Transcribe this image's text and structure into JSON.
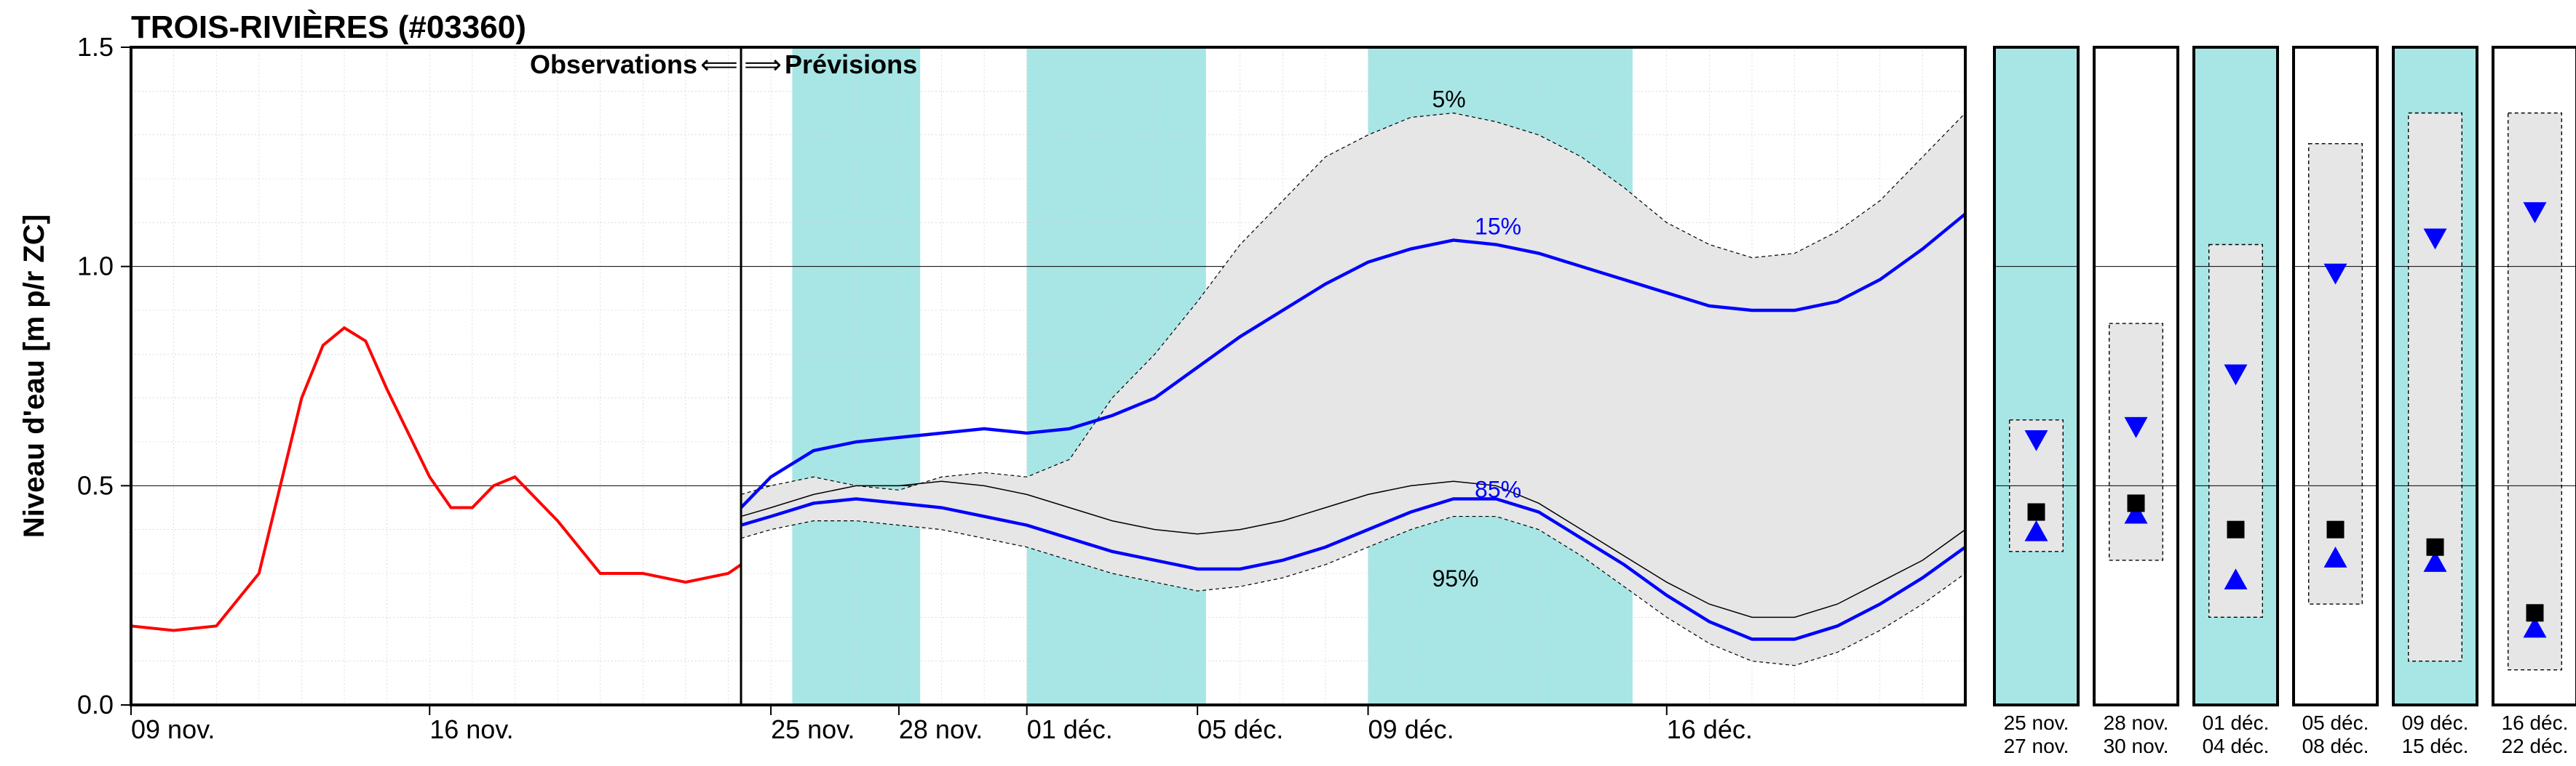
{
  "title": "TROIS-RIVIÈRES (#03360)",
  "y_axis_label": "Niveau d'eau [m p/r ZC]",
  "legend": {
    "observations": "Observations",
    "prévisions": "Prévisions"
  },
  "percentile_labels": {
    "p5": "5%",
    "p15": "15%",
    "p85": "85%",
    "p95": "95%"
  },
  "colors": {
    "background": "#ffffff",
    "grid": "#c8c8c8",
    "axis": "#000000",
    "obs_line": "#ff0000",
    "percentile_line": "#0000ff",
    "median_line": "#000000",
    "band_fill": "#e6e6e6",
    "band_edge": "#000000",
    "highlight_band": "#a8e6e6",
    "marker_square": "#000000",
    "marker_up": "#0000ff",
    "marker_down": "#0000ff"
  },
  "font_sizes": {
    "title": 22,
    "axis_label": 20,
    "tick": 18,
    "legend": 18,
    "pct": 16,
    "panel_xtick": 14
  },
  "line_widths": {
    "obs": 2.0,
    "percentile": 2.2,
    "median": 1.0,
    "band_edge_dash": "5,4",
    "panel_band_edge_dash": "5,4",
    "grid": 0.6,
    "grid_dash": "2,3",
    "axis": 2.0
  },
  "main_chart": {
    "type": "line",
    "ylim": [
      0.0,
      1.5
    ],
    "ytick_step": 0.5,
    "x_extent_days": [
      0,
      43
    ],
    "xticks_days": [
      0,
      7,
      15,
      18,
      21,
      25,
      29,
      36
    ],
    "xtick_labels": [
      "09 nov.",
      "16 nov.",
      "25 nov.",
      "28 nov.",
      "01 déc.",
      "05 déc.",
      "09 déc.",
      "16 déc."
    ],
    "obs_forecast_divider_day": 14.3,
    "highlight_bands_days": [
      [
        15.5,
        18.5
      ],
      [
        21,
        25.2
      ],
      [
        29,
        35.2
      ]
    ],
    "observations": {
      "x": [
        0,
        1,
        2,
        3,
        3.5,
        4,
        4.5,
        5,
        5.5,
        6,
        7,
        7.5,
        8,
        8.5,
        9,
        10,
        11,
        12,
        13,
        14,
        14.3
      ],
      "y": [
        0.18,
        0.17,
        0.18,
        0.3,
        0.5,
        0.7,
        0.82,
        0.86,
        0.83,
        0.72,
        0.52,
        0.45,
        0.45,
        0.5,
        0.52,
        0.42,
        0.3,
        0.3,
        0.28,
        0.3,
        0.32
      ]
    },
    "forecast": {
      "x": [
        14.3,
        15,
        16,
        17,
        18,
        19,
        20,
        21,
        22,
        23,
        24,
        25,
        26,
        27,
        28,
        29,
        30,
        31,
        32,
        33,
        34,
        35,
        36,
        37,
        38,
        39,
        40,
        41,
        42,
        43
      ],
      "p5": [
        0.48,
        0.5,
        0.52,
        0.5,
        0.49,
        0.52,
        0.53,
        0.52,
        0.56,
        0.7,
        0.8,
        0.92,
        1.05,
        1.15,
        1.25,
        1.3,
        1.34,
        1.35,
        1.33,
        1.3,
        1.25,
        1.18,
        1.1,
        1.05,
        1.02,
        1.03,
        1.08,
        1.15,
        1.25,
        1.35
      ],
      "p15": [
        0.45,
        0.52,
        0.58,
        0.6,
        0.61,
        0.62,
        0.63,
        0.62,
        0.63,
        0.66,
        0.7,
        0.77,
        0.84,
        0.9,
        0.96,
        1.01,
        1.04,
        1.06,
        1.05,
        1.03,
        1.0,
        0.97,
        0.94,
        0.91,
        0.9,
        0.9,
        0.92,
        0.97,
        1.04,
        1.12
      ],
      "median": [
        0.43,
        0.45,
        0.48,
        0.5,
        0.5,
        0.51,
        0.5,
        0.48,
        0.45,
        0.42,
        0.4,
        0.39,
        0.4,
        0.42,
        0.45,
        0.48,
        0.5,
        0.51,
        0.5,
        0.46,
        0.4,
        0.34,
        0.28,
        0.23,
        0.2,
        0.2,
        0.23,
        0.28,
        0.33,
        0.4
      ],
      "p85": [
        0.41,
        0.43,
        0.46,
        0.47,
        0.46,
        0.45,
        0.43,
        0.41,
        0.38,
        0.35,
        0.33,
        0.31,
        0.31,
        0.33,
        0.36,
        0.4,
        0.44,
        0.47,
        0.47,
        0.44,
        0.38,
        0.32,
        0.25,
        0.19,
        0.15,
        0.15,
        0.18,
        0.23,
        0.29,
        0.36
      ],
      "p95": [
        0.38,
        0.4,
        0.42,
        0.42,
        0.41,
        0.4,
        0.38,
        0.36,
        0.33,
        0.3,
        0.28,
        0.26,
        0.27,
        0.29,
        0.32,
        0.36,
        0.4,
        0.43,
        0.43,
        0.4,
        0.34,
        0.27,
        0.2,
        0.14,
        0.1,
        0.09,
        0.12,
        0.17,
        0.23,
        0.3
      ]
    },
    "pct_label_positions": {
      "p5": {
        "day": 30.5,
        "y": 1.35
      },
      "p15": {
        "day": 31.5,
        "y": 1.06
      },
      "p85": {
        "day": 31.5,
        "y": 0.46
      },
      "p95": {
        "day": 30.5,
        "y": 0.32
      }
    }
  },
  "panels": {
    "ylim": [
      0.0,
      1.5
    ],
    "dates": [
      [
        "25 nov.",
        "27 nov."
      ],
      [
        "28 nov.",
        "30 nov."
      ],
      [
        "01 déc.",
        "04 déc."
      ],
      [
        "05 déc.",
        "08 déc."
      ],
      [
        "09 déc.",
        "15 déc."
      ],
      [
        "16 déc.",
        "22 déc."
      ]
    ],
    "highlight": [
      true,
      false,
      true,
      false,
      true,
      false
    ],
    "data": [
      {
        "p5": 0.65,
        "p15": 0.6,
        "median": 0.44,
        "p85": 0.4,
        "p95": 0.35
      },
      {
        "p5": 0.87,
        "p15": 0.63,
        "median": 0.46,
        "p85": 0.44,
        "p95": 0.33
      },
      {
        "p5": 1.05,
        "p15": 0.75,
        "median": 0.4,
        "p85": 0.29,
        "p95": 0.2
      },
      {
        "p5": 1.28,
        "p15": 0.98,
        "median": 0.4,
        "p85": 0.34,
        "p95": 0.23
      },
      {
        "p5": 1.35,
        "p15": 1.06,
        "median": 0.36,
        "p85": 0.33,
        "p95": 0.1
      },
      {
        "p5": 1.35,
        "p15": 1.12,
        "median": 0.21,
        "p85": 0.18,
        "p95": 0.08
      }
    ]
  }
}
